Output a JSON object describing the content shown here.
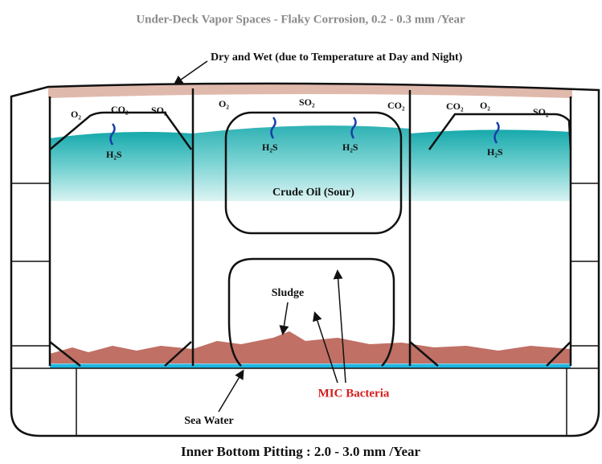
{
  "title": "Under-Deck Vapor Spaces - Flaky Corrosion, 0.2 - 0.3 mm /Year",
  "deck_note": "Dry and Wet (due to Temperature at Day and Night)",
  "gases": [
    "O₂",
    "CO₂",
    "SO₂",
    "O₂",
    "SO₂",
    "CO₂",
    "CO₂",
    "O₂",
    "SO₂"
  ],
  "h2s": [
    "H₂S",
    "H₂S",
    "H₂S",
    "H₂S"
  ],
  "crude_oil": "Crude Oil (Sour)",
  "sludge": "Sludge",
  "mic": "MIC Bacteria",
  "sea_water": "Sea Water",
  "footer": "Inner Bottom Pitting : 2.0 - 3.0 mm /Year"
}
